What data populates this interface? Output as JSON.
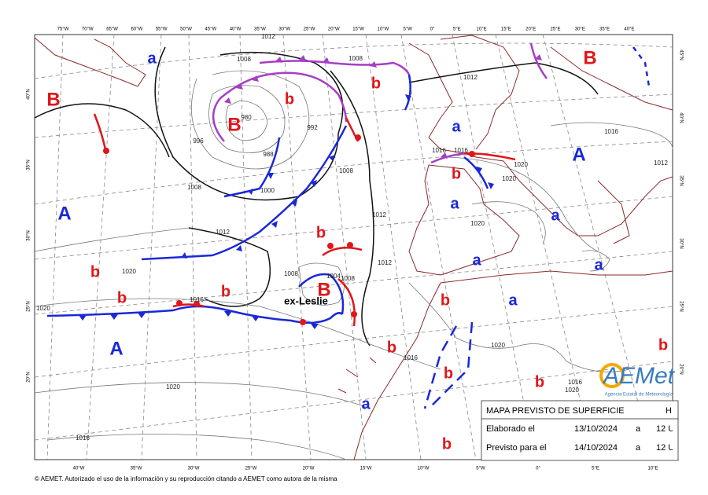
{
  "legend_box": {
    "title": "MAPA PREVISTO DE SUPERFICIE",
    "title_suffix": "H",
    "rows": [
      [
        "Elaborado el",
        "13/10/2024",
        "a",
        "12 U"
      ],
      [
        "Previsto para el",
        "14/10/2024",
        "a",
        "12 U"
      ]
    ]
  },
  "centers": [
    {
      "label": "a",
      "color": "#1a28d8"
    },
    {
      "label": "B",
      "color": "#e0161a"
    },
    {
      "label": "b",
      "color": "#e0161a"
    },
    {
      "label": "B",
      "color": "#e0161a"
    },
    {
      "label": "b",
      "color": "#e0161a"
    },
    {
      "label": "B",
      "color": "#e0161a"
    },
    {
      "label": "a",
      "color": "#1a28d8"
    },
    {
      "label": "A",
      "color": "#1a28d8"
    },
    {
      "label": "b",
      "color": "#e0161a"
    },
    {
      "label": "a",
      "color": "#1a28d8"
    },
    {
      "label": "A",
      "color": "#1a28d8"
    },
    {
      "label": "a",
      "color": "#1a28d8"
    },
    {
      "label": "b",
      "color": "#e0161a"
    },
    {
      "label": "a",
      "color": "#1a28d8"
    },
    {
      "label": "a",
      "color": "#1a28d8"
    },
    {
      "label": "b",
      "color": "#e0161a"
    },
    {
      "label": "B",
      "color": "#e0161a"
    },
    {
      "label": "b",
      "color": "#e0161a"
    },
    {
      "label": "b",
      "color": "#e0161a"
    },
    {
      "label": "b",
      "color": "#e0161a"
    },
    {
      "label": "a",
      "color": "#1a28d8"
    },
    {
      "label": "A",
      "color": "#1a28d8"
    },
    {
      "label": "b",
      "color": "#e0161a"
    },
    {
      "label": "b",
      "color": "#e0161a"
    },
    {
      "label": "b",
      "color": "#e0161a"
    },
    {
      "label": "b",
      "color": "#e0161a"
    },
    {
      "label": "a",
      "color": "#1a28d8"
    },
    {
      "label": "b",
      "color": "#e0161a"
    }
  ],
  "storm_label": "ex-Leslie",
  "isobar_labels": [
    "1012",
    "1008",
    "1008",
    "996",
    "980",
    "992",
    "988",
    "1000",
    "1008",
    "1008",
    "1012",
    "1012",
    "1012",
    "1016",
    "1020",
    "1020",
    "1016",
    "1020",
    "1020",
    "1016",
    "1020",
    "1020",
    "1016",
    "1016",
    "1020",
    "1008",
    "1004",
    "1008",
    "1012",
    "1016",
    "1020",
    "1012",
    "1016"
  ],
  "lon_top": [
    "75°W",
    "70°W",
    "65°W",
    "60°W",
    "55°W",
    "50°W",
    "45°W",
    "40°W",
    "35°W",
    "30°W",
    "25°W",
    "20°W",
    "15°W",
    "10°W",
    "5°W",
    "0°",
    "5°E",
    "10°E",
    "15°E",
    "20°E",
    "25°E",
    "30°E",
    "35°E",
    "40°E"
  ],
  "lon_bottom": [
    "40°W",
    "35°W",
    "30°W",
    "25°W",
    "20°W",
    "15°W",
    "10°W",
    "5°W",
    "0°",
    "5°E",
    "10°E"
  ],
  "lat_left": [
    "40°N",
    "35°N",
    "30°N",
    "25°N",
    "20°N"
  ],
  "lat_right": [
    "45°N",
    "40°N",
    "35°N",
    "30°N",
    "25°N",
    "20°N"
  ],
  "logo": {
    "name": "AEMet",
    "subtitle": "Agencia Estatal de Meteorología"
  },
  "footer": "© AEMET. Autorizado el uso de la información y su reproducción citando a AEMET como autora de la misma"
}
